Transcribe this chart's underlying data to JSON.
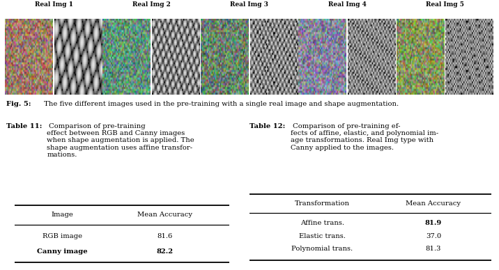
{
  "img_labels": [
    "Real Img 1",
    "Real Img 2",
    "Real Img 3",
    "Real Img 4",
    "Real Img 5"
  ],
  "fig5_bold": "Fig. 5:",
  "fig5_rest": " The five different images used in the pre-training with a single real image and shape augmentation.",
  "table11_title": "Table 11:",
  "table11_desc": " Comparison of pre-training\neffect between RGB and Canny images\nwhen shape augmentation is applied. The\nshape augmentation uses affine transfor-\nmations.",
  "table11_headers": [
    "Image",
    "Mean Accuracy"
  ],
  "table11_rows": [
    [
      "RGB image",
      "81.6"
    ],
    [
      "Canny image",
      "82.2"
    ]
  ],
  "table11_bold_row": 1,
  "table12_title": "Table 12:",
  "table12_desc": " Comparison of pre-training ef-\nfects of affine, elastic, and polynomial im-\nage transformations. Real Img type with\nCanny applied to the images.",
  "table12_headers": [
    "Transformation",
    "Mean Accuracy"
  ],
  "table12_rows": [
    [
      "Affine trans.",
      "81.9"
    ],
    [
      "Elastic trans.",
      "37.0"
    ],
    [
      "Polynomial trans.",
      "81.3"
    ]
  ],
  "table12_bold_row": 0,
  "bg_color": "#ffffff",
  "img_colors": [
    "#b87850",
    "#40a878",
    "#508858",
    "#8888b8",
    "#88a830"
  ],
  "label_fs": 6.5,
  "body_fs": 7.2,
  "table_fs": 7.2
}
